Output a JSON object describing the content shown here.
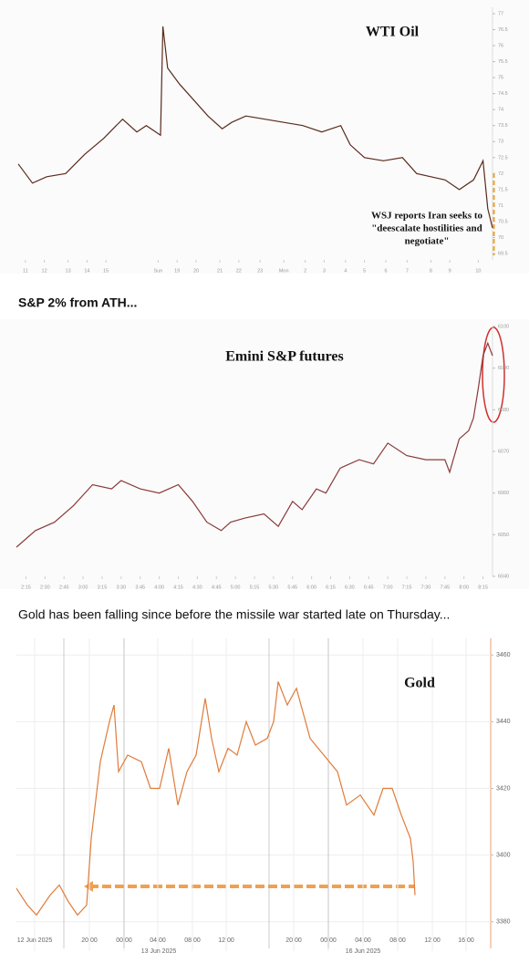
{
  "captions": [
    "S&P 2% from ATH...",
    "Gold has been falling since before the missile war started late on Thursday..."
  ],
  "chart_data": [
    {
      "type": "line",
      "title": "WTI Oil",
      "annotation": [
        "WSJ reports Iran seeks to",
        "\"deescalate hostilities and",
        "negotiate\""
      ],
      "x": [
        0,
        3,
        6,
        10,
        14,
        18,
        20,
        22,
        25,
        27,
        30,
        30.5,
        31.5,
        34,
        37,
        40,
        43,
        45,
        48,
        52,
        56,
        60,
        64,
        68,
        70,
        73,
        77,
        81,
        84,
        87,
        90,
        93,
        96,
        98,
        99,
        100
      ],
      "series": [
        {
          "name": "WTI Oil",
          "color": "#5a2a1e",
          "values": [
            72.3,
            71.7,
            71.9,
            72.0,
            72.6,
            73.1,
            73.4,
            73.7,
            73.3,
            73.5,
            73.2,
            76.6,
            75.3,
            74.8,
            74.3,
            73.8,
            73.4,
            73.6,
            73.8,
            73.7,
            73.6,
            73.5,
            73.3,
            73.5,
            72.9,
            72.5,
            72.4,
            72.5,
            72.0,
            71.9,
            71.8,
            71.5,
            71.8,
            72.4,
            70.9,
            70.3
          ]
        }
      ],
      "xlim": [
        0,
        100
      ],
      "xticks": [
        {
          "value": 1.5,
          "label": "11"
        },
        {
          "value": 5.5,
          "label": "12"
        },
        {
          "value": 10.5,
          "label": "13"
        },
        {
          "value": 14.5,
          "label": "14"
        },
        {
          "value": 18.5,
          "label": "15"
        },
        {
          "value": 29.5,
          "label": "Sun"
        },
        {
          "value": 33.5,
          "label": "19"
        },
        {
          "value": 37.5,
          "label": "20"
        },
        {
          "value": 42.5,
          "label": "21"
        },
        {
          "value": 46.5,
          "label": "22"
        },
        {
          "value": 51,
          "label": "23"
        },
        {
          "value": 56,
          "label": "Mon"
        },
        {
          "value": 60.5,
          "label": "2"
        },
        {
          "value": 64.5,
          "label": "3"
        },
        {
          "value": 69,
          "label": "4"
        },
        {
          "value": 73,
          "label": "5"
        },
        {
          "value": 77.5,
          "label": "6"
        },
        {
          "value": 82,
          "label": "7"
        },
        {
          "value": 87,
          "label": "8"
        },
        {
          "value": 91,
          "label": "9"
        },
        {
          "value": 97,
          "label": "10"
        }
      ],
      "ylim": [
        69.3,
        77.2
      ],
      "yticks": [
        {
          "value": 69.5,
          "label": "69.5"
        },
        70,
        {
          "value": 70.5,
          "label": "70.5"
        },
        71,
        {
          "value": 71.5,
          "label": "71.5"
        },
        72,
        {
          "value": 72.5,
          "label": "72.5"
        },
        73,
        {
          "value": 73.5,
          "label": "73.5"
        },
        74,
        {
          "value": 74.5,
          "label": "74.5"
        },
        75,
        {
          "value": 75.5,
          "label": "75.5"
        },
        76,
        {
          "value": 76.5,
          "label": "76.5"
        },
        77
      ],
      "grid": false
    },
    {
      "type": "line",
      "title": "Emini S&P futures",
      "x": [
        0,
        4,
        8,
        12,
        16,
        20,
        22,
        26,
        30,
        34,
        37,
        40,
        43,
        45,
        48,
        52,
        55,
        58,
        60,
        63,
        65,
        68,
        72,
        75,
        78,
        82,
        86,
        90,
        91,
        93,
        95,
        96,
        97,
        98,
        99,
        100
      ],
      "series": [
        {
          "name": "Emini S&P futures",
          "color": "#8a3a3a",
          "values": [
            6047,
            6051,
            6053,
            6057,
            6062,
            6061,
            6063,
            6061,
            6060,
            6062,
            6058,
            6053,
            6051,
            6053,
            6054,
            6055,
            6052,
            6058,
            6056,
            6061,
            6060,
            6066,
            6068,
            6067,
            6072,
            6069,
            6068,
            6068,
            6065,
            6073,
            6075,
            6078,
            6085,
            6093,
            6096,
            6093
          ]
        }
      ],
      "xlim": [
        0,
        100
      ],
      "xticks": [
        {
          "value": 2,
          "label": "2:15"
        },
        {
          "value": 6,
          "label": "2:30"
        },
        {
          "value": 10,
          "label": "2:45"
        },
        {
          "value": 14,
          "label": "3:00"
        },
        {
          "value": 18,
          "label": "3:15"
        },
        {
          "value": 22,
          "label": "3:30"
        },
        {
          "value": 26,
          "label": "3:45"
        },
        {
          "value": 30,
          "label": "4:00"
        },
        {
          "value": 34,
          "label": "4:15"
        },
        {
          "value": 38,
          "label": "4:30"
        },
        {
          "value": 42,
          "label": "4:45"
        },
        {
          "value": 46,
          "label": "5:00"
        },
        {
          "value": 50,
          "label": "5:15"
        },
        {
          "value": 54,
          "label": "5:30"
        },
        {
          "value": 58,
          "label": "5:45"
        },
        {
          "value": 62,
          "label": "6:00"
        },
        {
          "value": 66,
          "label": "6:15"
        },
        {
          "value": 70,
          "label": "6:30"
        },
        {
          "value": 74,
          "label": "6:45"
        },
        {
          "value": 78,
          "label": "7:00"
        },
        {
          "value": 82,
          "label": "7:15"
        },
        {
          "value": 86,
          "label": "7:30"
        },
        {
          "value": 90,
          "label": "7:45"
        },
        {
          "value": 94,
          "label": "8:00"
        },
        {
          "value": 98,
          "label": "8:15"
        }
      ],
      "ylim": [
        6040,
        6100
      ],
      "yticks": [
        6040,
        6050,
        6060,
        6070,
        6080,
        6090,
        6100
      ],
      "grid": false
    },
    {
      "type": "line",
      "title": "Gold",
      "date_labels": [
        "13 Jun 2025",
        "16 Jun 2025"
      ],
      "x": [
        0,
        12,
        22,
        37,
        47,
        57,
        67,
        77,
        82,
        92,
        102,
        107,
        112,
        122,
        137,
        147,
        157,
        167,
        177,
        187,
        197,
        207,
        214,
        222,
        232,
        242,
        252,
        262,
        275,
        282,
        287,
        297,
        307,
        322,
        337,
        352,
        362,
        377,
        392,
        402,
        412,
        422,
        432,
        435,
        437
      ],
      "series": [
        {
          "name": "Gold",
          "color": "#e07b39",
          "values": [
            3390,
            3385,
            3382,
            3388,
            3391,
            3386,
            3382,
            3385,
            3405,
            3428,
            3440,
            3445,
            3425,
            3430,
            3428,
            3420,
            3420,
            3432,
            3415,
            3425,
            3430,
            3447,
            3435,
            3425,
            3432,
            3430,
            3440,
            3433,
            3435,
            3440,
            3452,
            3445,
            3450,
            3435,
            3430,
            3425,
            3415,
            3418,
            3412,
            3420,
            3420,
            3412,
            3405,
            3398,
            3388
          ]
        }
      ],
      "xlim": [
        0,
        520
      ],
      "xticks": [
        {
          "value": 20,
          "label": "12 Jun 2025"
        },
        {
          "value": 80,
          "label": "20:00"
        },
        {
          "value": 118,
          "label": "00:00"
        },
        {
          "value": 155,
          "label": "04:00"
        },
        {
          "value": 193,
          "label": "08:00"
        },
        {
          "value": 230,
          "label": "12:00"
        },
        {
          "value": 304,
          "label": "20:00"
        },
        {
          "value": 342,
          "label": "00:00"
        },
        {
          "value": 380,
          "label": "04:00"
        },
        {
          "value": 418,
          "label": "08:00"
        },
        {
          "value": 456,
          "label": "12:00"
        },
        {
          "value": 493,
          "label": "16:00"
        }
      ],
      "ylim": [
        3372,
        3465
      ],
      "yticks": [
        3380,
        3400,
        3420,
        3440,
        3460
      ],
      "grid": true
    }
  ]
}
